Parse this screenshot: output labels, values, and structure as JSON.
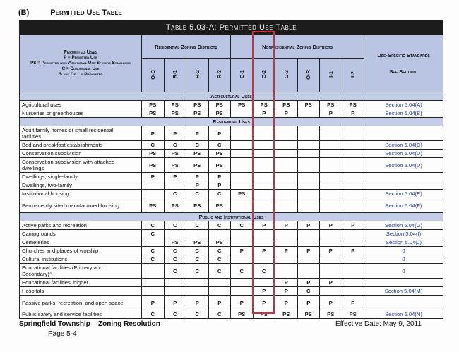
{
  "section_heading": {
    "label": "(B)",
    "title": "Permitted Use Table"
  },
  "table_title": "Table 5.03-A: Permitted Use Table",
  "legend": {
    "title": "Permitted Uses",
    "p": "P = Permitted Use",
    "ps": "PS = Permitted with Additional Use-Specific Standards",
    "c": "C = Conditional Use",
    "blank": "Blank Cell = Prohibited"
  },
  "group_residential": "Residential Zoning Districts",
  "group_nonresidential": "Nonresidential Zoning Districts",
  "standards_header": "Use-Specific Standards",
  "see_section": "See Section:",
  "columns": [
    "O-C",
    "R-1",
    "R-2",
    "R-3",
    "C-1",
    "C-2",
    "C-3",
    "O-R",
    "I-1",
    "I-2"
  ],
  "highlight_color": "#c8303c",
  "sections": [
    {
      "name": "Agricultural Uses",
      "rows": [
        {
          "use": "Agricultural uses",
          "v": [
            "PS",
            "PS",
            "PS",
            "PS",
            "PS",
            "PS",
            "PS",
            "PS",
            "PS",
            "PS"
          ],
          "std": "Section 5.04(A)"
        },
        {
          "use": "Nurseries or greenhouses",
          "v": [
            "PS",
            "PS",
            "PS",
            "PS",
            "",
            "P",
            "P",
            "",
            "P",
            "P"
          ],
          "std": "Section 5.04(B)"
        }
      ]
    },
    {
      "name": "Residential Uses",
      "rows": [
        {
          "use": "Adult family homes or small residential facilities",
          "v": [
            "P",
            "P",
            "P",
            "P",
            "",
            "",
            "",
            "",
            "",
            ""
          ],
          "std": "",
          "dbl": true
        },
        {
          "use": "Bed and breakfast establishments",
          "v": [
            "C",
            "C",
            "C",
            "C",
            "",
            "",
            "",
            "",
            "",
            ""
          ],
          "std": "Section 5.04(C)"
        },
        {
          "use": "Conservation subdivision",
          "v": [
            "PS",
            "PS",
            "PS",
            "PS",
            "",
            "",
            "",
            "",
            "",
            ""
          ],
          "std": "Section 5.04(D)"
        },
        {
          "use": "Conservation subdivision with attached dwellings",
          "v": [
            "PS",
            "PS",
            "PS",
            "PS",
            "",
            "",
            "",
            "",
            "",
            ""
          ],
          "std": "Section 5.04(D)",
          "dbl": true
        },
        {
          "use": "Dwellings, single-family",
          "v": [
            "P",
            "P",
            "P",
            "P",
            "",
            "",
            "",
            "",
            "",
            ""
          ],
          "std": ""
        },
        {
          "use": "Dwellings, two-family",
          "v": [
            "",
            "",
            "P",
            "P",
            "",
            "",
            "",
            "",
            "",
            ""
          ],
          "std": ""
        },
        {
          "use": "Institutional housing",
          "v": [
            "",
            "C",
            "C",
            "C",
            "PS",
            "",
            "",
            "",
            "",
            ""
          ],
          "std": "Section 5.04(E)"
        },
        {
          "use": "Permanently sited manufactured housing",
          "v": [
            "PS",
            "PS",
            "PS",
            "PS",
            "",
            "",
            "",
            "",
            "",
            ""
          ],
          "std": "Section 5.04(F)",
          "dbl": true
        }
      ]
    },
    {
      "name": "Public and Institutional Uses",
      "rows": [
        {
          "use": "Active parks and recreation",
          "v": [
            "C",
            "C",
            "C",
            "C",
            "C",
            "P",
            "P",
            "P",
            "P",
            "P"
          ],
          "std": "Section 5.04(G)"
        },
        {
          "use": "Campgrounds",
          "v": [
            "C",
            "",
            "",
            "",
            "",
            "",
            "",
            "",
            "",
            ""
          ],
          "std": "Section 5.04(I)"
        },
        {
          "use": "Cemeteries",
          "v": [
            "",
            "PS",
            "PS",
            "PS",
            "",
            "",
            "",
            "",
            "",
            ""
          ],
          "std": "Section 5.04(J)"
        },
        {
          "use": "Churches and places of worship",
          "v": [
            "C",
            "C",
            "C",
            "C",
            "P",
            "P",
            "P",
            "P",
            "P",
            "P"
          ],
          "std": "0"
        },
        {
          "use": "Cultural institutions",
          "v": [
            "C",
            "C",
            "C",
            "C",
            "",
            "",
            "",
            "",
            "",
            ""
          ],
          "std": "0"
        },
        {
          "use": "Educational facilities (Primary and Secondary)⁴",
          "v": [
            "",
            "C",
            "C",
            "C",
            "C",
            "C",
            "",
            "",
            "",
            ""
          ],
          "std": "0",
          "dbl": true
        },
        {
          "use": "Educational facilities, higher",
          "v": [
            "",
            "",
            "",
            "",
            "",
            "",
            "P",
            "P",
            "P",
            ""
          ],
          "std": ""
        },
        {
          "use": "Hospitals",
          "v": [
            "",
            "",
            "",
            "",
            "",
            "P",
            "P",
            "C",
            "",
            ""
          ],
          "std": "Section 5.04(M)"
        },
        {
          "use": "Passive parks, recreation, and open space",
          "v": [
            "P",
            "P",
            "P",
            "P",
            "P",
            "P",
            "P",
            "P",
            "P",
            "P"
          ],
          "std": "",
          "dbl": true
        },
        {
          "use": "Public safety and service facilities",
          "v": [
            "C",
            "C",
            "C",
            "C",
            "PS",
            "PS",
            "PS",
            "PS",
            "PS",
            "PS"
          ],
          "std": "Section 5.04(N)"
        }
      ]
    }
  ],
  "footer": {
    "doc": "Springfield Township – Zoning Resolution",
    "page": "Page 5-4",
    "effective": "Effective Date: May 9, 2011"
  }
}
